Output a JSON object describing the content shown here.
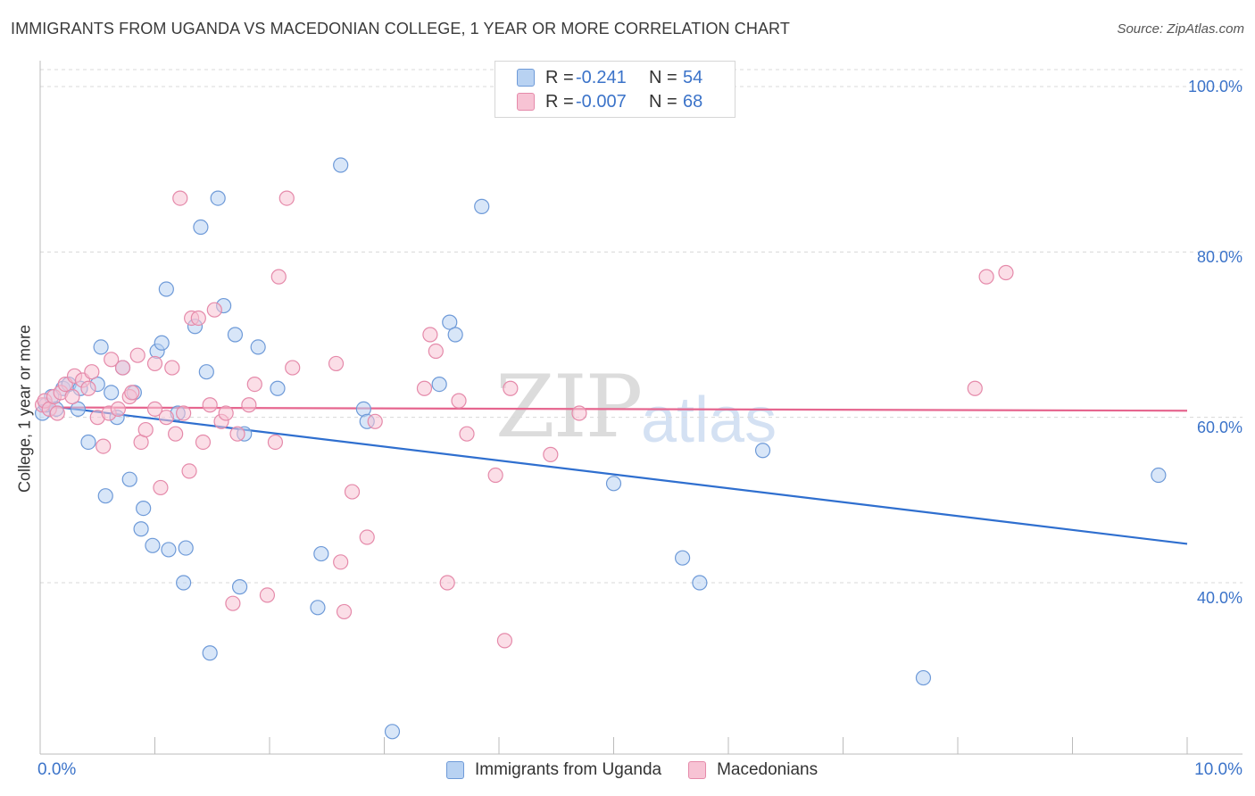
{
  "title": "IMMIGRANTS FROM UGANDA VS MACEDONIAN COLLEGE, 1 YEAR OR MORE CORRELATION CHART",
  "source": "Source: ZipAtlas.com",
  "watermark": {
    "zip": "ZIP",
    "atlas": "atlas"
  },
  "legend": {
    "r_label": "R =",
    "n_label": "N =",
    "series1": {
      "r": "-0.241",
      "n": "54"
    },
    "series2": {
      "r": "-0.007",
      "n": "68"
    }
  },
  "colors": {
    "blue_fill": "#b8d2f2",
    "blue_stroke": "#6e9ad8",
    "blue_line": "#2f6fcf",
    "pink_fill": "#f7c3d4",
    "pink_stroke": "#e58aaa",
    "pink_line": "#e6668f",
    "grid": "#d8d8d8",
    "axis_label": "#3b73c9"
  },
  "chart_data": {
    "type": "scatter",
    "title": "IMMIGRANTS FROM UGANDA VS MACEDONIAN COLLEGE, 1 YEAR OR MORE CORRELATION CHART",
    "xlabel": "",
    "ylabel": "College, 1 year or more",
    "xlim": [
      0,
      10
    ],
    "ylim": [
      18,
      102
    ],
    "x_tick_labels": [
      "0.0%",
      "10.0%"
    ],
    "y_tick_labels": [
      "100.0%",
      "80.0%",
      "60.0%",
      "40.0%"
    ],
    "y_ticks": [
      100,
      80,
      60,
      40
    ],
    "grid": true,
    "legend_position": "bottom",
    "series": [
      {
        "name": "Immigrants from Uganda",
        "r": -0.241,
        "n": 54,
        "trend": {
          "x": [
            0,
            10
          ],
          "y": [
            61.5,
            44.7
          ]
        },
        "points": [
          [
            0.02,
            60.5
          ],
          [
            0.05,
            61.5
          ],
          [
            0.1,
            62.5
          ],
          [
            0.14,
            61.0
          ],
          [
            0.2,
            63.5
          ],
          [
            0.25,
            64.0
          ],
          [
            0.33,
            61.0
          ],
          [
            0.35,
            63.5
          ],
          [
            0.42,
            57.0
          ],
          [
            0.5,
            64.0
          ],
          [
            0.53,
            68.5
          ],
          [
            0.57,
            50.5
          ],
          [
            0.62,
            63.0
          ],
          [
            0.67,
            60.0
          ],
          [
            0.72,
            66.0
          ],
          [
            0.78,
            52.5
          ],
          [
            0.82,
            63.0
          ],
          [
            0.88,
            46.5
          ],
          [
            0.9,
            49.0
          ],
          [
            0.98,
            44.5
          ],
          [
            1.02,
            68.0
          ],
          [
            1.06,
            69.0
          ],
          [
            1.1,
            75.5
          ],
          [
            1.12,
            44.0
          ],
          [
            1.2,
            60.5
          ],
          [
            1.25,
            40.0
          ],
          [
            1.27,
            44.2
          ],
          [
            1.35,
            71.0
          ],
          [
            1.4,
            83.0
          ],
          [
            1.45,
            65.5
          ],
          [
            1.48,
            31.5
          ],
          [
            1.55,
            86.5
          ],
          [
            1.6,
            73.5
          ],
          [
            1.7,
            70.0
          ],
          [
            1.74,
            39.5
          ],
          [
            1.78,
            58.0
          ],
          [
            1.9,
            68.5
          ],
          [
            2.07,
            63.5
          ],
          [
            2.42,
            37.0
          ],
          [
            2.45,
            43.5
          ],
          [
            2.62,
            90.5
          ],
          [
            2.82,
            61.0
          ],
          [
            2.85,
            59.5
          ],
          [
            3.07,
            22.0
          ],
          [
            3.48,
            64.0
          ],
          [
            3.57,
            71.5
          ],
          [
            3.62,
            70.0
          ],
          [
            3.85,
            85.5
          ],
          [
            5.0,
            52.0
          ],
          [
            5.6,
            43.0
          ],
          [
            5.75,
            40.0
          ],
          [
            6.3,
            56.0
          ],
          [
            7.7,
            28.5
          ],
          [
            9.75,
            53.0
          ]
        ]
      },
      {
        "name": "Macedonians",
        "r": -0.007,
        "n": 68,
        "trend": {
          "x": [
            0,
            10
          ],
          "y": [
            61.2,
            60.8
          ]
        },
        "points": [
          [
            0.02,
            61.5
          ],
          [
            0.04,
            62.0
          ],
          [
            0.08,
            61.0
          ],
          [
            0.12,
            62.5
          ],
          [
            0.18,
            63.0
          ],
          [
            0.22,
            64.0
          ],
          [
            0.28,
            62.5
          ],
          [
            0.3,
            65.0
          ],
          [
            0.37,
            64.5
          ],
          [
            0.42,
            63.5
          ],
          [
            0.5,
            60.0
          ],
          [
            0.55,
            56.5
          ],
          [
            0.6,
            60.5
          ],
          [
            0.62,
            67.0
          ],
          [
            0.68,
            61.0
          ],
          [
            0.72,
            66.0
          ],
          [
            0.78,
            62.5
          ],
          [
            0.8,
            63.0
          ],
          [
            0.85,
            67.5
          ],
          [
            0.88,
            57.0
          ],
          [
            0.92,
            58.5
          ],
          [
            1.0,
            66.5
          ],
          [
            1.05,
            51.5
          ],
          [
            1.1,
            60.0
          ],
          [
            1.15,
            66.0
          ],
          [
            1.18,
            58.0
          ],
          [
            1.22,
            86.5
          ],
          [
            1.25,
            60.5
          ],
          [
            1.3,
            53.5
          ],
          [
            1.32,
            72.0
          ],
          [
            1.38,
            72.0
          ],
          [
            1.42,
            57.0
          ],
          [
            1.48,
            61.5
          ],
          [
            1.52,
            73.0
          ],
          [
            1.58,
            59.5
          ],
          [
            1.62,
            60.5
          ],
          [
            1.68,
            37.5
          ],
          [
            1.72,
            58.0
          ],
          [
            1.82,
            61.5
          ],
          [
            1.87,
            64.0
          ],
          [
            1.98,
            38.5
          ],
          [
            2.05,
            57.0
          ],
          [
            2.08,
            77.0
          ],
          [
            2.15,
            86.5
          ],
          [
            2.2,
            66.0
          ],
          [
            2.58,
            66.5
          ],
          [
            2.62,
            42.5
          ],
          [
            2.65,
            36.5
          ],
          [
            2.72,
            51.0
          ],
          [
            2.85,
            45.5
          ],
          [
            2.92,
            59.5
          ],
          [
            3.35,
            63.5
          ],
          [
            3.4,
            70.0
          ],
          [
            3.45,
            68.0
          ],
          [
            3.55,
            40.0
          ],
          [
            3.65,
            62.0
          ],
          [
            3.72,
            58.0
          ],
          [
            3.97,
            53.0
          ],
          [
            4.05,
            33.0
          ],
          [
            4.1,
            63.5
          ],
          [
            4.45,
            55.5
          ],
          [
            4.7,
            60.5
          ],
          [
            8.15,
            63.5
          ],
          [
            8.25,
            77.0
          ],
          [
            8.42,
            77.5
          ],
          [
            0.45,
            65.5
          ],
          [
            0.15,
            60.5
          ],
          [
            1.0,
            61.0
          ]
        ]
      }
    ]
  },
  "bottom_legend": {
    "series1": "Immigrants from Uganda",
    "series2": "Macedonians"
  }
}
